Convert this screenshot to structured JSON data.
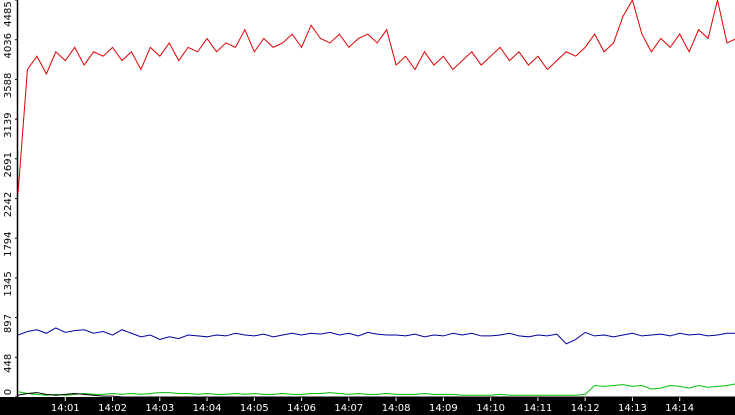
{
  "chart_data": {
    "type": "line",
    "x": [
      0,
      0.2,
      0.4,
      0.6,
      0.8,
      1,
      1.2,
      1.4,
      1.6,
      1.8,
      2,
      2.2,
      2.4,
      2.6,
      2.8,
      3,
      3.2,
      3.4,
      3.6,
      3.8,
      4,
      4.2,
      4.4,
      4.6,
      4.8,
      5,
      5.2,
      5.4,
      5.6,
      5.8,
      6,
      6.2,
      6.4,
      6.6,
      6.8,
      7,
      7.2,
      7.4,
      7.6,
      7.8,
      8,
      8.2,
      8.4,
      8.6,
      8.8,
      9,
      9.2,
      9.4,
      9.6,
      9.8,
      10,
      10.2,
      10.4,
      10.6,
      10.8,
      11,
      11.2,
      11.4,
      11.6,
      11.8,
      12,
      12.2,
      12.4,
      12.6,
      12.8,
      13,
      13.2,
      13.4,
      13.6,
      13.8,
      14,
      14.2,
      14.4,
      14.6,
      14.8,
      15,
      15.2
    ],
    "series": [
      {
        "color": "#e00000",
        "values": [
          2300,
          3700,
          3850,
          3650,
          3900,
          3800,
          3950,
          3750,
          3900,
          3850,
          3950,
          3800,
          3900,
          3700,
          3950,
          3850,
          4000,
          3800,
          3950,
          3900,
          4050,
          3900,
          4000,
          3950,
          4150,
          3900,
          4050,
          3950,
          4000,
          4100,
          3950,
          4200,
          4050,
          4000,
          4100,
          3950,
          4050,
          4100,
          4000,
          4150,
          3750,
          3850,
          3700,
          3900,
          3750,
          3850,
          3700,
          3800,
          3900,
          3750,
          3850,
          3950,
          3800,
          3900,
          3750,
          3850,
          3700,
          3800,
          3900,
          3850,
          3950,
          4100,
          3900,
          4000,
          4300,
          4485,
          4100,
          3900,
          4050,
          3950,
          4100,
          3900,
          4150,
          4050,
          4485,
          4000,
          4050
        ]
      },
      {
        "color": "#0000a0",
        "values": [
          700,
          740,
          760,
          720,
          780,
          730,
          750,
          760,
          720,
          740,
          700,
          760,
          720,
          680,
          700,
          650,
          680,
          660,
          700,
          690,
          680,
          700,
          690,
          720,
          700,
          690,
          710,
          680,
          700,
          720,
          700,
          720,
          710,
          730,
          700,
          720,
          690,
          730,
          710,
          700,
          700,
          690,
          710,
          680,
          700,
          690,
          720,
          700,
          720,
          690,
          690,
          700,
          720,
          690,
          680,
          700,
          690,
          710,
          600,
          650,
          730,
          690,
          700,
          680,
          700,
          720,
          690,
          700,
          710,
          690,
          720,
          700,
          710,
          690,
          700,
          720,
          720
        ]
      },
      {
        "color": "#00c000",
        "values": [
          60,
          40,
          30,
          20,
          30,
          20,
          30,
          40,
          30,
          30,
          40,
          30,
          40,
          30,
          40,
          50,
          50,
          40,
          40,
          30,
          40,
          30,
          30,
          40,
          30,
          40,
          30,
          30,
          40,
          30,
          30,
          40,
          40,
          50,
          40,
          30,
          40,
          30,
          30,
          40,
          30,
          30,
          30,
          40,
          30,
          30,
          30,
          20,
          20,
          20,
          20,
          30,
          20,
          20,
          20,
          20,
          20,
          20,
          20,
          20,
          30,
          130,
          120,
          130,
          140,
          120,
          130,
          90,
          100,
          130,
          120,
          100,
          130,
          110,
          120,
          130,
          150
        ]
      },
      {
        "color": "#000000",
        "values": [
          20,
          40,
          50,
          30,
          20,
          30,
          40,
          30,
          20,
          10,
          10,
          0,
          0,
          0,
          0,
          0,
          0,
          0,
          0,
          0,
          0,
          0,
          0,
          0,
          0,
          0,
          0,
          0,
          0,
          0,
          0,
          0,
          0,
          0,
          0,
          0,
          0,
          0,
          0,
          0,
          0,
          0,
          0,
          0,
          0,
          0,
          0,
          0,
          0,
          0,
          0,
          0,
          0,
          0,
          0,
          0,
          0,
          0,
          0,
          0,
          0,
          0,
          0,
          0,
          0,
          0,
          0,
          0,
          0,
          0,
          0,
          0,
          0,
          0,
          0,
          0,
          0
        ]
      }
    ],
    "xlim": [
      0,
      15.17
    ],
    "xticks": [
      {
        "value": 1,
        "label": "14:01"
      },
      {
        "value": 2,
        "label": "14:02"
      },
      {
        "value": 3,
        "label": "14:03"
      },
      {
        "value": 4,
        "label": "14:04"
      },
      {
        "value": 5,
        "label": "14:05"
      },
      {
        "value": 6,
        "label": "14:06"
      },
      {
        "value": 7,
        "label": "14:07"
      },
      {
        "value": 8,
        "label": "14:08"
      },
      {
        "value": 9,
        "label": "14:09"
      },
      {
        "value": 10,
        "label": "14:10"
      },
      {
        "value": 11,
        "label": "14:11"
      },
      {
        "value": 12,
        "label": "14:12"
      },
      {
        "value": 13,
        "label": "14:13"
      },
      {
        "value": 14,
        "label": "14:14"
      }
    ],
    "ylim": [
      0,
      4485
    ],
    "yticks": [
      0,
      448,
      897,
      1345,
      1794,
      2242,
      2691,
      3139,
      3588,
      4036,
      4485
    ]
  }
}
